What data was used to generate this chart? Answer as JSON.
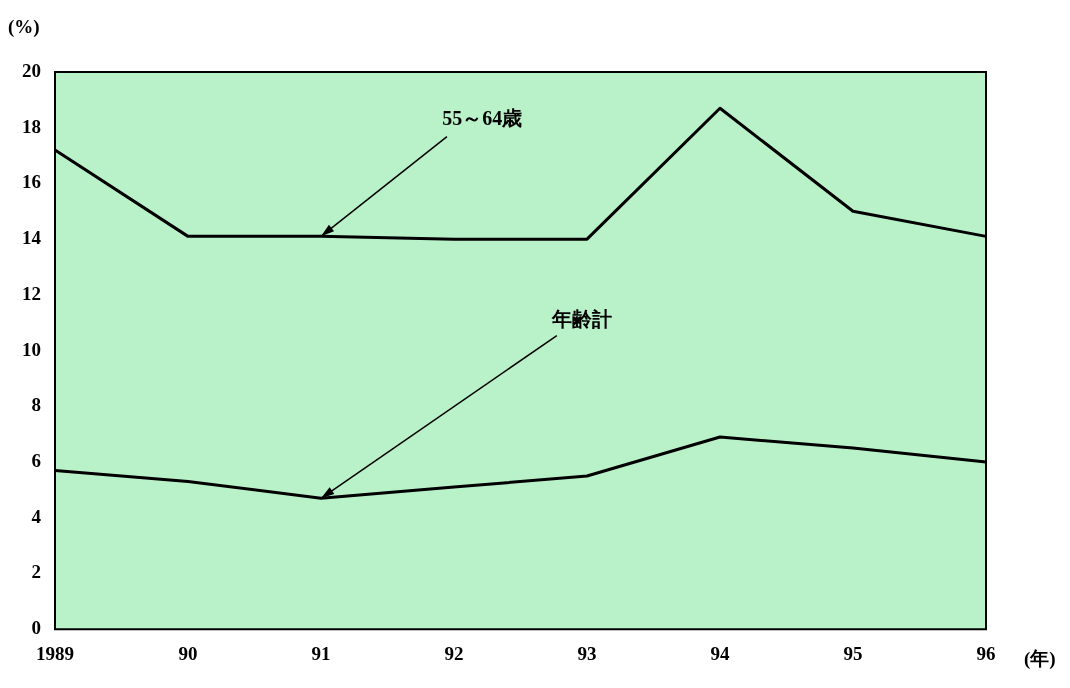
{
  "chart_data": {
    "type": "line",
    "xlabel": "(年)",
    "ylabel": "(%)",
    "categories": [
      "1989",
      "90",
      "91",
      "92",
      "93",
      "94",
      "95",
      "96"
    ],
    "series": [
      {
        "color": "#000000",
        "values": [
          17.2,
          14.1,
          14.1,
          14.0,
          14.0,
          18.7,
          15.0,
          14.1
        ]
      },
      {
        "color": "#000000",
        "values": [
          5.7,
          5.3,
          4.7,
          5.1,
          5.5,
          6.9,
          6.5,
          6.0
        ]
      }
    ],
    "annotations": [
      {
        "text": "55～64歳",
        "x": "91",
        "y": 14.1
      },
      {
        "text": "年齢計",
        "x": "91",
        "y": 4.7
      }
    ],
    "ylim": [
      0,
      20
    ],
    "yticks": [
      0,
      2,
      4,
      6,
      8,
      10,
      12,
      14,
      16,
      18,
      20
    ],
    "grid": false,
    "legend": false,
    "marker": "none",
    "line_style": "solid"
  }
}
